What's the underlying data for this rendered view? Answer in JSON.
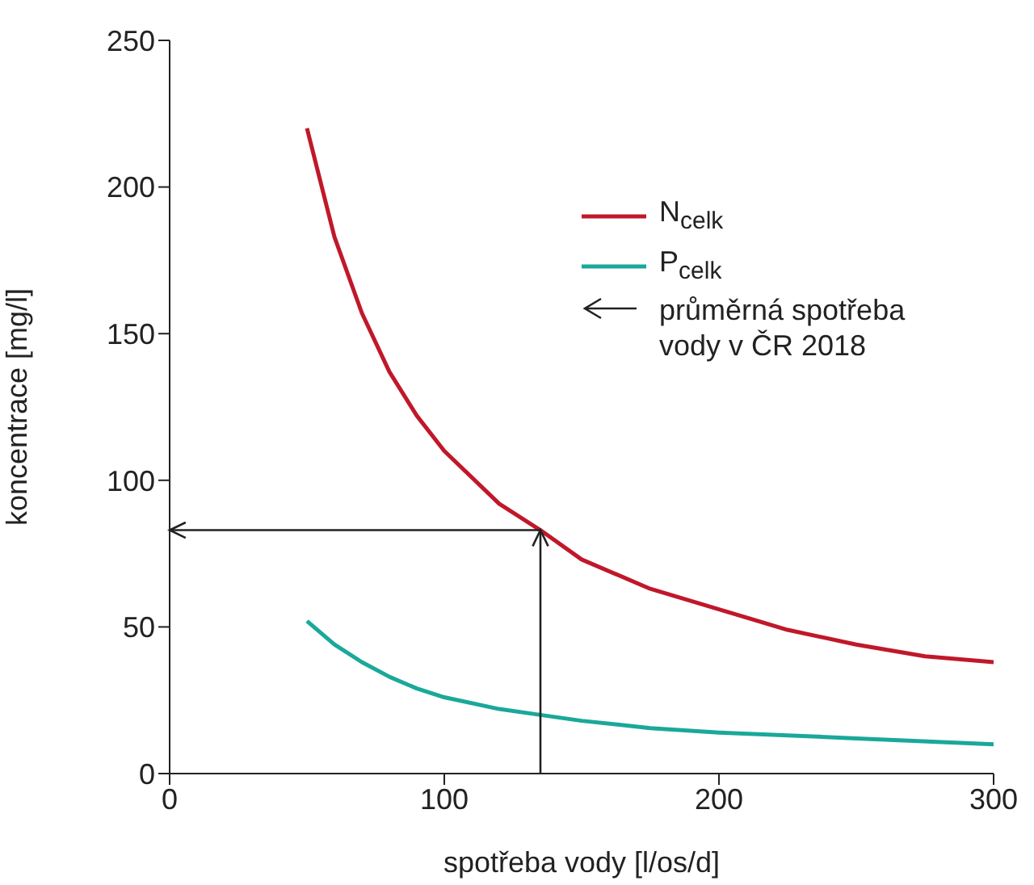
{
  "chart_data": {
    "type": "line",
    "xlabel": "spotřeba vody [l/os/d]",
    "ylabel": "koncentrace [mg/l]",
    "xlim": [
      0,
      300
    ],
    "xticks": [
      0,
      100,
      200,
      300
    ],
    "ylim": [
      0,
      250
    ],
    "yticks": [
      0,
      50,
      100,
      150,
      200,
      250
    ],
    "grid": false,
    "legend": "top right",
    "series": [
      {
        "name": "N$_{celk}$",
        "color": "#c0182a",
        "x": [
          50,
          60,
          70,
          80,
          90,
          100,
          120,
          135,
          150,
          175,
          200,
          225,
          250,
          275,
          300
        ],
        "values": [
          220,
          183,
          157,
          137,
          122,
          110,
          92,
          83,
          73,
          63,
          56,
          49,
          44,
          40,
          38
        ]
      },
      {
        "name": "P$_{celk}$",
        "color": "#1aa89a",
        "x": [
          50,
          60,
          70,
          80,
          90,
          100,
          120,
          135,
          150,
          175,
          200,
          250,
          300
        ],
        "values": [
          52,
          44,
          38,
          33,
          29,
          26,
          22,
          20,
          18,
          15.5,
          14,
          12,
          10
        ]
      }
    ],
    "ref_lines": [
      {
        "axis": "x",
        "value": 135,
        "color": "#222222"
      },
      {
        "axis": "y",
        "value": 83,
        "color": "#222222"
      }
    ],
    "annotations": [
      "průměrná spotřeba vody v ČR 2018"
    ]
  }
}
